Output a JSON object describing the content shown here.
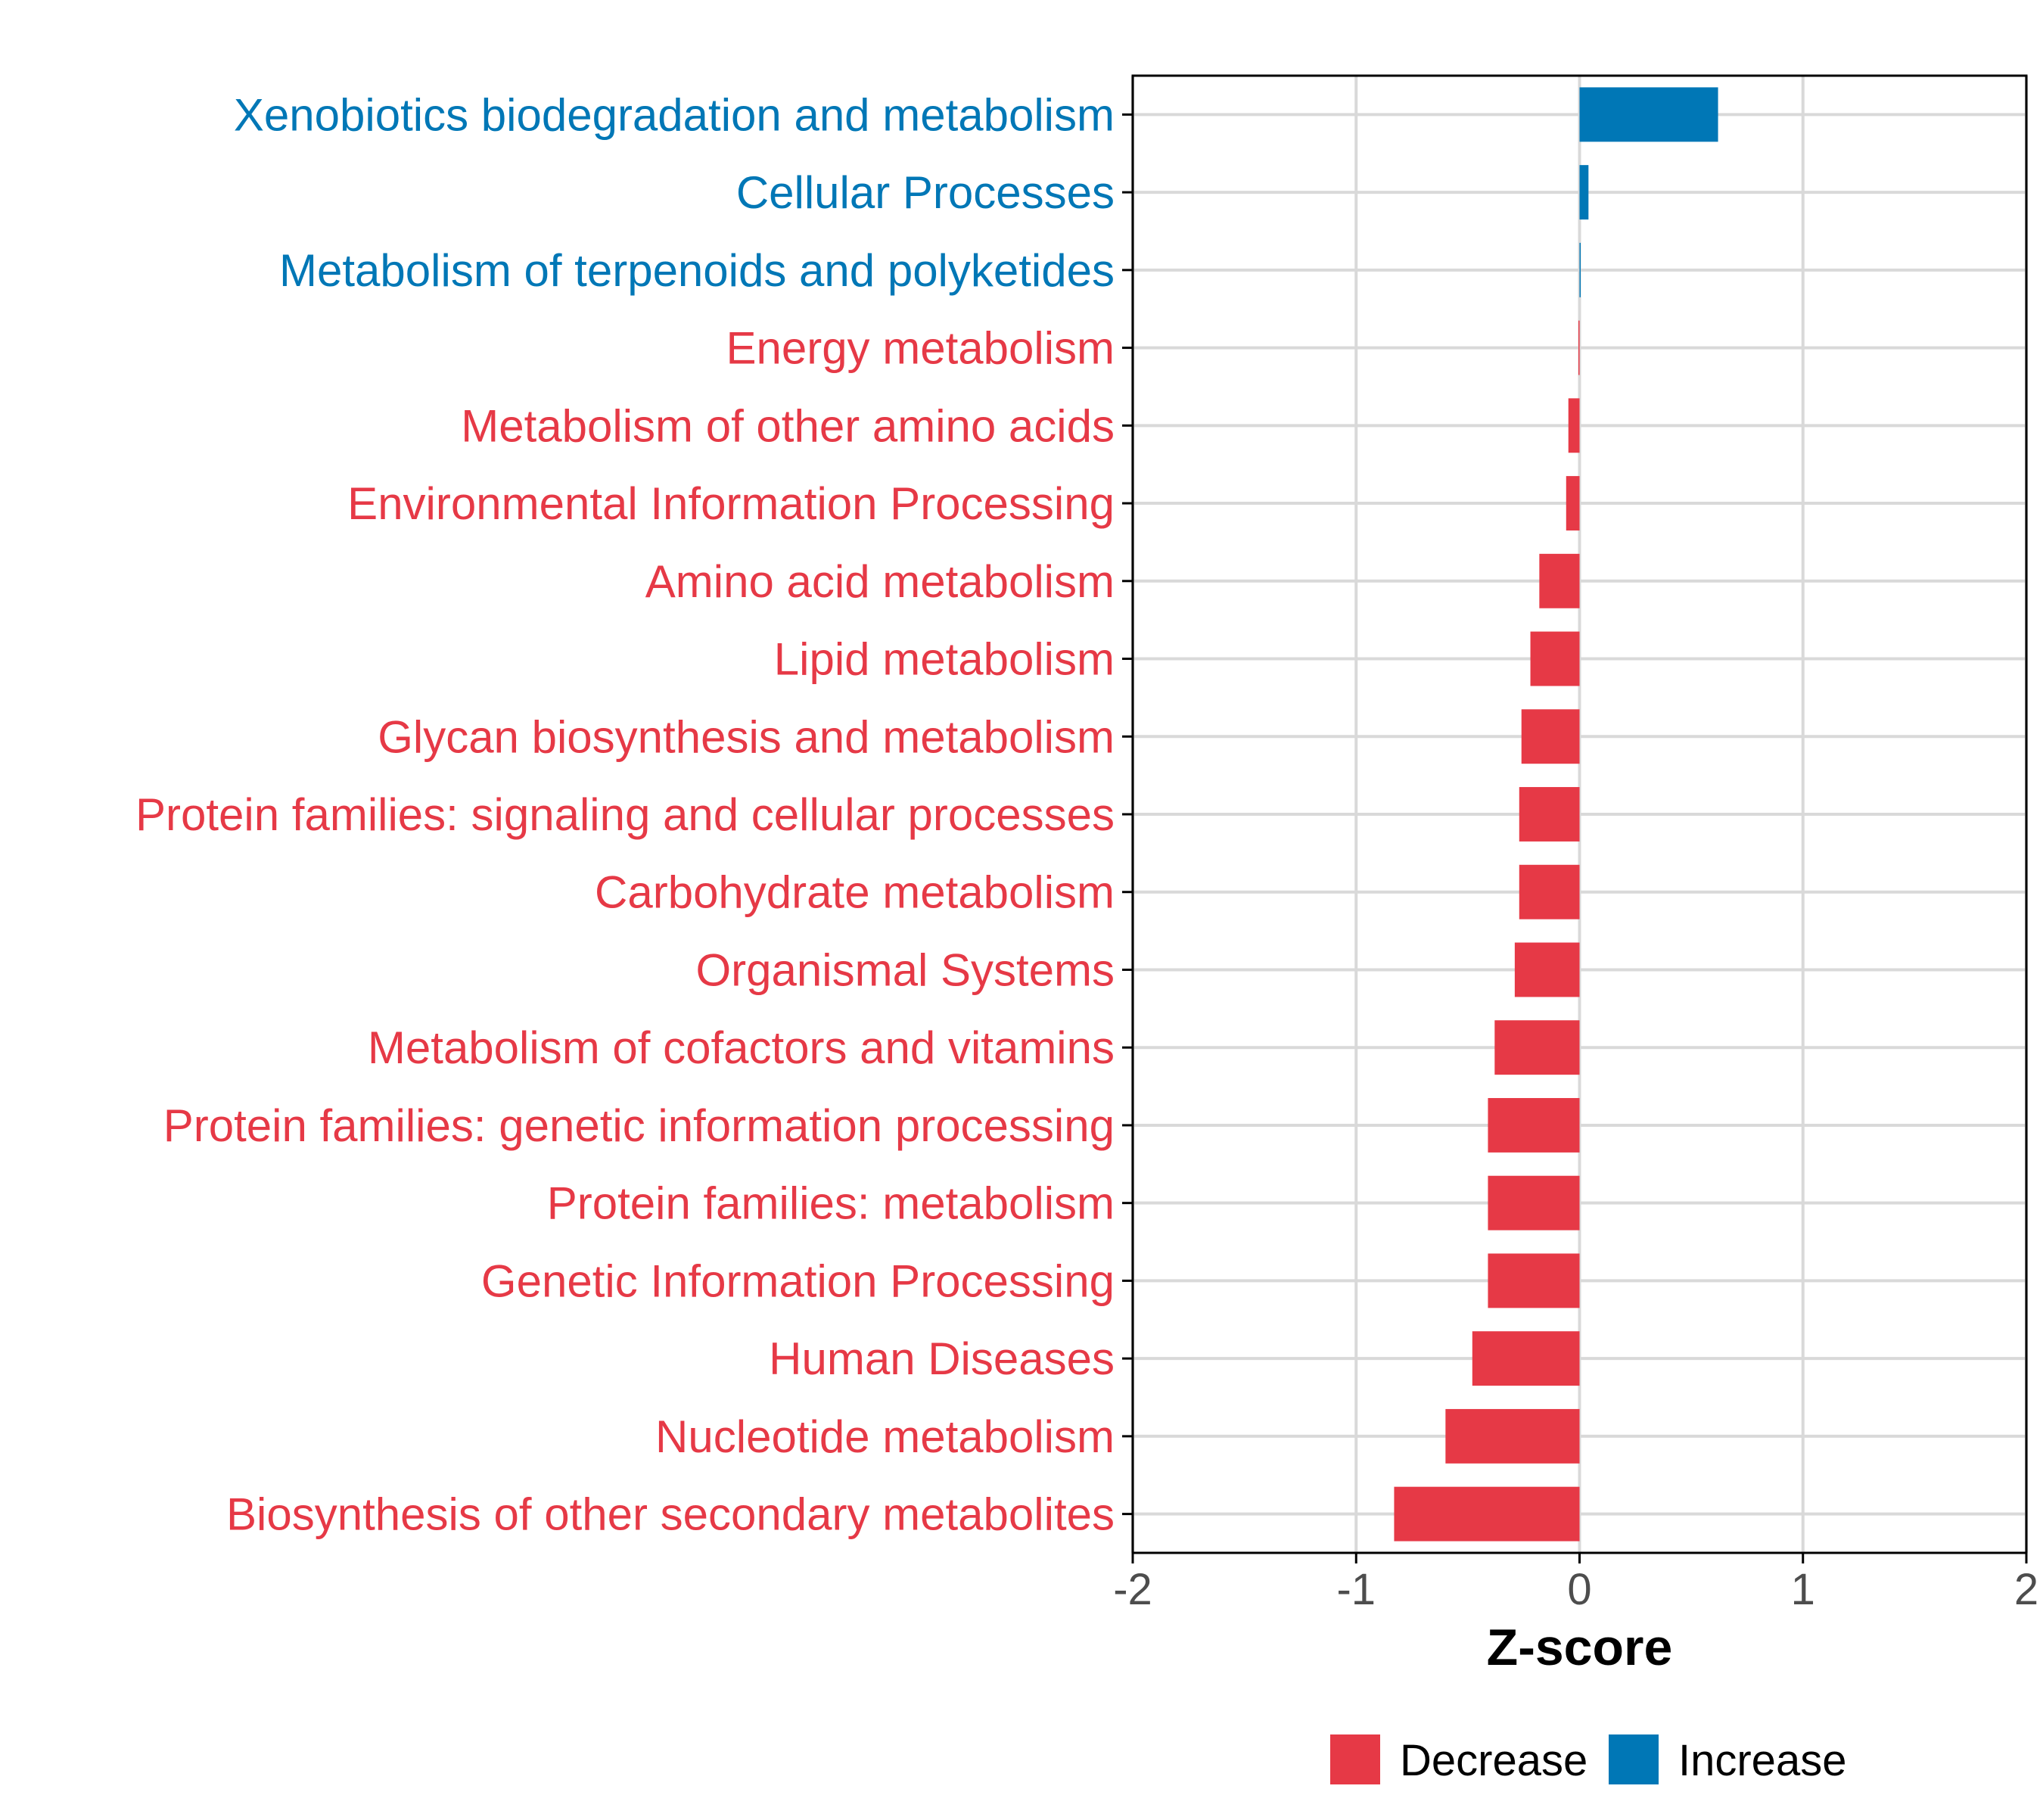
{
  "chart_data": {
    "type": "bar",
    "orientation": "horizontal",
    "xlabel": "Z-score",
    "ylabel": "",
    "xlim": [
      -2,
      2
    ],
    "x_ticks": [
      -2,
      -1,
      0,
      1,
      2
    ],
    "x_tick_labels": [
      "-2",
      "-1",
      "0",
      "1",
      "2"
    ],
    "grid": true,
    "legend_position": "bottom",
    "categories": [
      "Xenobiotics biodegradation and metabolism",
      "Cellular Processes",
      "Metabolism of terpenoids and polyketides",
      "Energy metabolism",
      "Metabolism of other amino acids",
      "Environmental Information Processing",
      "Amino acid metabolism",
      "Lipid metabolism",
      "Glycan biosynthesis and metabolism",
      "Protein families: signaling and cellular processes",
      "Carbohydrate metabolism",
      "Organismal Systems",
      "Metabolism of cofactors and vitamins",
      "Protein families: genetic information processing",
      "Protein families: metabolism",
      "Genetic Information Processing",
      "Human Diseases",
      "Nucleotide metabolism",
      "Biosynthesis of other secondary metabolites"
    ],
    "values": [
      0.62,
      0.04,
      0.005,
      -0.005,
      -0.05,
      -0.06,
      -0.18,
      -0.22,
      -0.26,
      -0.27,
      -0.27,
      -0.29,
      -0.38,
      -0.41,
      -0.41,
      -0.41,
      -0.48,
      -0.6,
      -0.83
    ],
    "groups": [
      "Increase",
      "Increase",
      "Increase",
      "Decrease",
      "Decrease",
      "Decrease",
      "Decrease",
      "Decrease",
      "Decrease",
      "Decrease",
      "Decrease",
      "Decrease",
      "Decrease",
      "Decrease",
      "Decrease",
      "Decrease",
      "Decrease",
      "Decrease",
      "Decrease"
    ],
    "legend": [
      {
        "name": "Decrease",
        "color": "#e63946"
      },
      {
        "name": "Increase",
        "color": "#0077b6"
      }
    ]
  },
  "colors": {
    "decrease": "#e63946",
    "increase": "#0077b6",
    "grid": "#d9d9d9",
    "axis": "#000000"
  }
}
